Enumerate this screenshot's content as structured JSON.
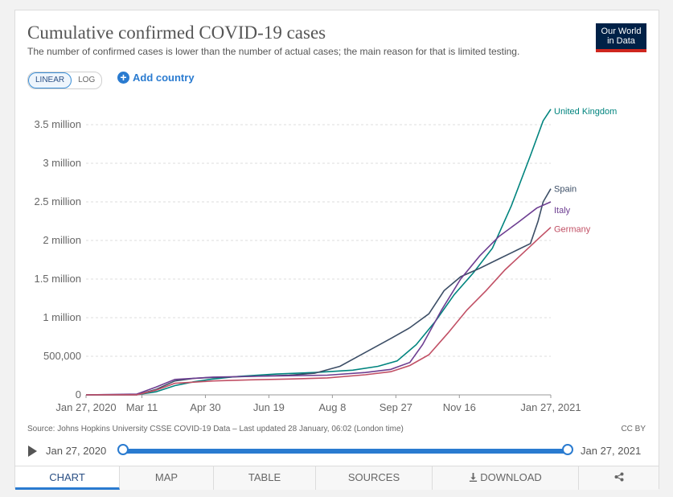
{
  "header": {
    "title": "Cumulative confirmed COVID-19 cases",
    "subtitle": "The number of confirmed cases is lower than the number of actual cases; the main reason for that is limited testing.",
    "logo_line1": "Our World",
    "logo_line2": "in Data"
  },
  "controls": {
    "scale_linear": "LINEAR",
    "scale_log": "LOG",
    "add_country": "Add country"
  },
  "chart_data": {
    "type": "line",
    "title": "Cumulative confirmed COVID-19 cases",
    "xlabel": "",
    "ylabel": "",
    "ylim": [
      0,
      3750000
    ],
    "grid": true,
    "x_range_days": [
      0,
      366
    ],
    "x_ticks": [
      {
        "label": "Jan 27, 2020",
        "day": 0
      },
      {
        "label": "Mar 11",
        "day": 44
      },
      {
        "label": "Apr 30",
        "day": 94
      },
      {
        "label": "Jun 19",
        "day": 144
      },
      {
        "label": "Aug 8",
        "day": 194
      },
      {
        "label": "Sep 27",
        "day": 244
      },
      {
        "label": "Nov 16",
        "day": 294
      },
      {
        "label": "Jan 27, 2021",
        "day": 366
      }
    ],
    "y_ticks": [
      {
        "label": "0",
        "value": 0
      },
      {
        "label": "500,000",
        "value": 500000
      },
      {
        "label": "1 million",
        "value": 1000000
      },
      {
        "label": "1.5 million",
        "value": 1500000
      },
      {
        "label": "2 million",
        "value": 2000000
      },
      {
        "label": "2.5 million",
        "value": 2500000
      },
      {
        "label": "3 million",
        "value": 3000000
      },
      {
        "label": "3.5 million",
        "value": 3500000
      }
    ],
    "series": [
      {
        "name": "United Kingdom",
        "color": "#00847e",
        "points": [
          [
            0,
            0
          ],
          [
            40,
            2000
          ],
          [
            55,
            40000
          ],
          [
            70,
            120000
          ],
          [
            85,
            170000
          ],
          [
            100,
            205000
          ],
          [
            120,
            240000
          ],
          [
            150,
            270000
          ],
          [
            180,
            290000
          ],
          [
            210,
            320000
          ],
          [
            230,
            370000
          ],
          [
            245,
            440000
          ],
          [
            260,
            650000
          ],
          [
            275,
            950000
          ],
          [
            290,
            1300000
          ],
          [
            305,
            1580000
          ],
          [
            320,
            1900000
          ],
          [
            335,
            2450000
          ],
          [
            350,
            3100000
          ],
          [
            360,
            3550000
          ],
          [
            366,
            3700000
          ]
        ]
      },
      {
        "name": "Spain",
        "color": "#3c4e66",
        "points": [
          [
            0,
            0
          ],
          [
            40,
            1000
          ],
          [
            55,
            70000
          ],
          [
            70,
            180000
          ],
          [
            85,
            215000
          ],
          [
            100,
            225000
          ],
          [
            130,
            240000
          ],
          [
            160,
            255000
          ],
          [
            180,
            280000
          ],
          [
            200,
            370000
          ],
          [
            220,
            550000
          ],
          [
            240,
            730000
          ],
          [
            255,
            870000
          ],
          [
            270,
            1050000
          ],
          [
            282,
            1350000
          ],
          [
            295,
            1530000
          ],
          [
            310,
            1640000
          ],
          [
            325,
            1760000
          ],
          [
            340,
            1880000
          ],
          [
            350,
            1960000
          ],
          [
            356,
            2250000
          ],
          [
            360,
            2500000
          ],
          [
            366,
            2670000
          ]
        ]
      },
      {
        "name": "Italy",
        "color": "#6d3e91",
        "points": [
          [
            0,
            0
          ],
          [
            40,
            10000
          ],
          [
            55,
            100000
          ],
          [
            70,
            200000
          ],
          [
            85,
            215000
          ],
          [
            100,
            230000
          ],
          [
            130,
            240000
          ],
          [
            160,
            248000
          ],
          [
            190,
            255000
          ],
          [
            220,
            290000
          ],
          [
            240,
            330000
          ],
          [
            255,
            420000
          ],
          [
            265,
            650000
          ],
          [
            280,
            1100000
          ],
          [
            295,
            1500000
          ],
          [
            310,
            1800000
          ],
          [
            325,
            2050000
          ],
          [
            340,
            2230000
          ],
          [
            355,
            2420000
          ],
          [
            366,
            2500000
          ]
        ]
      },
      {
        "name": "Germany",
        "color": "#c15065",
        "points": [
          [
            0,
            0
          ],
          [
            40,
            1000
          ],
          [
            55,
            60000
          ],
          [
            70,
            150000
          ],
          [
            85,
            165000
          ],
          [
            100,
            180000
          ],
          [
            130,
            195000
          ],
          [
            160,
            205000
          ],
          [
            190,
            220000
          ],
          [
            220,
            260000
          ],
          [
            240,
            300000
          ],
          [
            255,
            380000
          ],
          [
            270,
            520000
          ],
          [
            285,
            800000
          ],
          [
            300,
            1100000
          ],
          [
            315,
            1350000
          ],
          [
            330,
            1620000
          ],
          [
            345,
            1850000
          ],
          [
            358,
            2050000
          ],
          [
            366,
            2170000
          ]
        ]
      }
    ]
  },
  "footer": {
    "source": "Source: Johns Hopkins University CSSE COVID-19 Data – Last updated 28 January, 06:02 (London time)",
    "license": "CC BY",
    "timeline_start": "Jan 27, 2020",
    "timeline_end": "Jan 27, 2021"
  },
  "tabs": [
    {
      "label": "CHART",
      "active": true
    },
    {
      "label": "MAP",
      "active": false
    },
    {
      "label": "TABLE",
      "active": false
    },
    {
      "label": "SOURCES",
      "active": false
    },
    {
      "label": "DOWNLOAD",
      "active": false
    },
    {
      "label": "",
      "active": false
    }
  ],
  "icons": {
    "download": "download-icon",
    "share": "share-icon",
    "play": "play-icon",
    "add": "plus-icon"
  }
}
